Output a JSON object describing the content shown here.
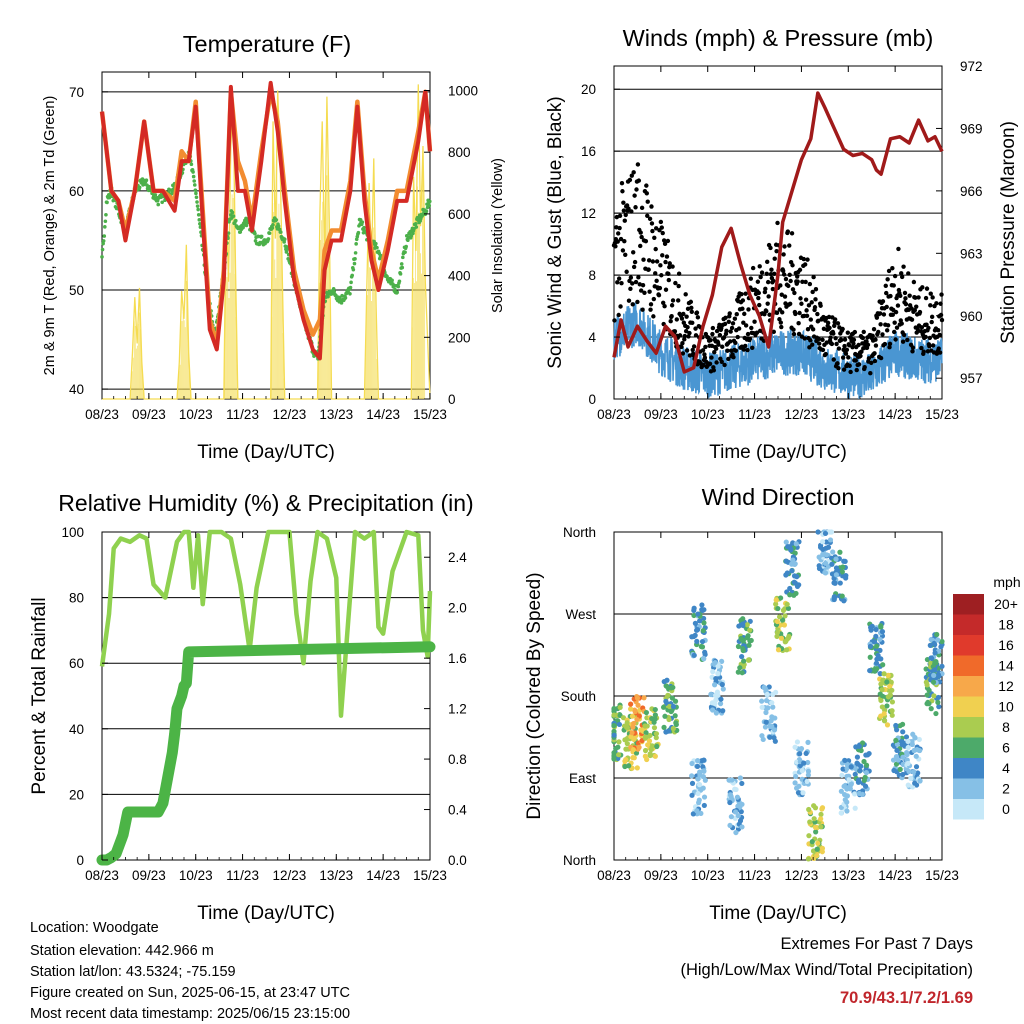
{
  "info": {
    "location": "Location: Woodgate",
    "elevation": "Station elevation: 442.966 m",
    "latlon": "Station lat/lon: 43.5324; -75.159",
    "created": "Figure created on Sun, 2025-06-15, at 23:47 UTC",
    "recent": "Most recent data timestamp: 2025/06/15 23:15:00"
  },
  "extremes": {
    "title": "Extremes For Past 7 Days",
    "subtitle": "(High/Low/Max Wind/Total Precipitation)",
    "values": "70.9/43.1/7.2/1.69"
  },
  "colors": {
    "red": "#d42a24",
    "orange": "#f28c30",
    "green": "#4cb04a",
    "yellow": "#f5dc52",
    "blue": "#4a96d2",
    "maroon": "#a01a1a",
    "lightgreen": "#8fd14f",
    "darkgreen": "#4cb446"
  },
  "chart_data": [
    {
      "id": "temp",
      "type": "line",
      "title": "Temperature (F)",
      "xlabel": "Time (Day/UTC)",
      "ylabel_left": "2m & 9m T (Red, Orange) & 2m Td (Green)",
      "ylabel_right": "Solar Insolation (Yellow)",
      "x_ticks": [
        "08/23",
        "09/23",
        "10/23",
        "11/23",
        "12/23",
        "13/23",
        "14/23",
        "15/23"
      ],
      "y_ticks": [
        "40",
        "50",
        "60",
        "70"
      ],
      "ylim": [
        39,
        72
      ],
      "y2_ticks": [
        "0",
        "200",
        "400",
        "600",
        "800",
        "1000"
      ],
      "y2lim": [
        0,
        1060
      ],
      "gridlines": [
        40,
        50,
        60,
        70
      ],
      "series": [
        {
          "role": "solar",
          "x": [
            0,
            0.1,
            0.15,
            0.2,
            0.25,
            0.3,
            0.6,
            0.65,
            0.7,
            0.75,
            0.8,
            0.85,
            0.9,
            1.6,
            1.65,
            1.7,
            1.75,
            1.8,
            1.85,
            1.9,
            2.6,
            2.65,
            2.7,
            2.75,
            2.8,
            2.85,
            2.9,
            3.6,
            3.65,
            3.7,
            3.75,
            3.8,
            3.85,
            3.9,
            4.6,
            4.65,
            4.7,
            4.75,
            4.8,
            4.85,
            4.9,
            5.6,
            5.65,
            5.7,
            5.75,
            5.8,
            5.85,
            5.9,
            6.6,
            6.65,
            6.7,
            6.75,
            6.8,
            6.85,
            6.9,
            7.0
          ],
          "y": [
            0,
            0,
            0,
            0,
            0,
            0,
            0,
            150,
            330,
            180,
            360,
            120,
            0,
            0,
            120,
            350,
            260,
            500,
            150,
            0,
            0,
            650,
            380,
            820,
            960,
            420,
            0,
            0,
            900,
            520,
            1000,
            780,
            380,
            0,
            0,
            600,
            900,
            450,
            980,
            580,
            0,
            0,
            350,
            700,
            420,
            780,
            300,
            0,
            0,
            720,
            480,
            1020,
            560,
            820,
            380,
            0
          ]
        },
        {
          "role": "t9m",
          "x": [
            0,
            0.2,
            0.35,
            0.5,
            0.7,
            0.9,
            1.1,
            1.3,
            1.55,
            1.7,
            1.85,
            2.0,
            2.15,
            2.3,
            2.45,
            2.6,
            2.75,
            2.9,
            3.05,
            3.2,
            3.4,
            3.6,
            3.75,
            3.9,
            4.1,
            4.3,
            4.5,
            4.65,
            4.75,
            4.9,
            5.1,
            5.3,
            5.45,
            5.6,
            5.75,
            5.9,
            6.1,
            6.3,
            6.5,
            6.75,
            6.9,
            7.0
          ],
          "y": [
            68,
            60,
            59,
            56,
            60,
            67,
            60,
            60,
            59,
            64,
            63,
            69,
            58,
            47,
            44.5,
            52,
            70,
            63,
            61,
            57,
            64,
            70,
            67,
            60,
            52,
            48,
            45.5,
            47,
            54,
            56,
            56,
            61,
            69,
            60,
            54,
            51,
            55,
            60,
            60,
            66,
            70,
            64
          ]
        },
        {
          "role": "t2m",
          "x": [
            0,
            0.2,
            0.35,
            0.5,
            0.7,
            0.9,
            1.1,
            1.3,
            1.55,
            1.7,
            1.85,
            2.0,
            2.15,
            2.3,
            2.45,
            2.6,
            2.75,
            2.9,
            3.05,
            3.2,
            3.4,
            3.6,
            3.75,
            3.9,
            4.1,
            4.3,
            4.5,
            4.65,
            4.75,
            4.9,
            5.1,
            5.3,
            5.45,
            5.6,
            5.75,
            5.9,
            6.1,
            6.3,
            6.5,
            6.75,
            6.9,
            7.0
          ],
          "y": [
            68,
            60,
            59,
            55,
            60,
            67,
            60,
            60,
            58,
            63,
            63,
            68.5,
            57,
            46,
            44,
            51,
            70.5,
            60,
            60,
            56,
            63,
            70.9,
            66,
            59,
            51,
            47,
            44,
            43.1,
            52,
            55,
            55,
            60,
            68.5,
            59,
            53,
            50,
            54,
            59,
            59,
            65,
            70,
            64
          ]
        },
        {
          "role": "td",
          "x": [
            0,
            0.1,
            0.2,
            0.5,
            0.7,
            0.9,
            1.2,
            1.5,
            1.7,
            1.85,
            2.0,
            2.2,
            2.4,
            2.55,
            2.75,
            2.9,
            3.1,
            3.3,
            3.5,
            3.7,
            3.9,
            4.1,
            4.3,
            4.5,
            4.6,
            4.75,
            4.9,
            5.1,
            5.3,
            5.5,
            5.7,
            5.9,
            6.1,
            6.3,
            6.5,
            6.75,
            6.9,
            7.0
          ],
          "y": [
            53,
            59,
            60,
            56,
            60,
            61,
            59,
            60,
            62,
            64,
            60,
            52,
            45,
            50,
            58,
            56,
            57,
            55,
            55,
            57,
            55,
            51,
            47,
            44,
            43,
            49,
            50,
            49,
            50,
            57,
            55,
            54,
            51,
            50,
            55,
            57,
            58,
            59
          ]
        }
      ]
    },
    {
      "id": "winds",
      "type": "scatter",
      "title": "Winds (mph) & Pressure (mb)",
      "xlabel": "Time (Day/UTC)",
      "ylabel_left": "Sonic Wind & Gust (Blue, Black)",
      "ylabel_right": "Station Pressure (Maroon)",
      "x_ticks": [
        "08/23",
        "09/23",
        "10/23",
        "11/23",
        "12/23",
        "13/23",
        "14/23",
        "15/23"
      ],
      "y_ticks": [
        "0",
        "4",
        "8",
        "12",
        "16",
        "20"
      ],
      "ylim": [
        0,
        21.5
      ],
      "y2_ticks": [
        "957",
        "960",
        "963",
        "966",
        "969",
        "972"
      ],
      "y2lim": [
        956,
        972
      ],
      "gridlines": [
        4,
        8,
        12,
        16,
        20
      ],
      "series": [
        {
          "role": "gust_level",
          "x": [
            0,
            0.5,
            1,
            1.5,
            2,
            2.5,
            3,
            3.5,
            4,
            4.5,
            5,
            5.5,
            6,
            6.5,
            7
          ],
          "y": [
            9,
            11,
            8,
            5,
            3,
            4,
            6,
            8,
            7,
            4,
            3,
            3,
            7,
            5,
            5
          ]
        },
        {
          "role": "sonic_level",
          "x": [
            0,
            0.5,
            1,
            1.5,
            2,
            2.5,
            3,
            3.5,
            4,
            4.5,
            5,
            5.5,
            6,
            6.5,
            7
          ],
          "y": [
            4,
            5,
            3,
            2,
            1.5,
            2,
            2.5,
            3,
            3,
            2,
            1.5,
            1.5,
            3,
            2.5,
            2.5
          ]
        },
        {
          "role": "pressure",
          "x": [
            0,
            0.15,
            0.3,
            0.5,
            0.7,
            0.9,
            1.1,
            1.3,
            1.5,
            1.7,
            1.9,
            2.1,
            2.3,
            2.5,
            2.7,
            2.9,
            3.1,
            3.3,
            3.5,
            3.6,
            3.8,
            4.0,
            4.2,
            4.35,
            4.5,
            4.7,
            4.9,
            5.1,
            5.3,
            5.5,
            5.6,
            5.7,
            5.9,
            6.1,
            6.3,
            6.5,
            6.7,
            6.85,
            7.0
          ],
          "y": [
            958,
            959.8,
            958.5,
            959.5,
            958.8,
            958.2,
            959.5,
            959,
            957.3,
            957.5,
            959.5,
            961,
            963.3,
            964.2,
            962.5,
            961,
            960,
            958.5,
            962,
            964.5,
            966,
            967.5,
            968.5,
            970.7,
            970,
            969,
            968,
            967.7,
            967.8,
            967.5,
            967,
            966.8,
            968.5,
            968.6,
            968.3,
            969.4,
            968.4,
            968.6,
            967.9
          ]
        }
      ]
    },
    {
      "id": "rh",
      "type": "line",
      "title": "Relative Humidity (%) & Precipitation (in)",
      "xlabel": "Time (Day/UTC)",
      "ylabel_left": "Percent & Total Rainfall",
      "x_ticks": [
        "08/23",
        "09/23",
        "10/23",
        "11/23",
        "12/23",
        "13/23",
        "14/23",
        "15/23"
      ],
      "y_ticks": [
        "0",
        "20",
        "40",
        "60",
        "80",
        "100"
      ],
      "ylim": [
        0,
        100
      ],
      "y2_ticks": [
        "0.0",
        "0.4",
        "0.8",
        "1.2",
        "1.6",
        "2.0",
        "2.4"
      ],
      "y2lim": [
        0,
        2.6
      ],
      "gridlines": [
        20,
        40,
        60,
        80,
        100
      ],
      "series": [
        {
          "role": "rh",
          "x": [
            0,
            0.15,
            0.25,
            0.4,
            0.6,
            0.8,
            0.95,
            1.1,
            1.35,
            1.6,
            1.75,
            1.85,
            1.95,
            2.05,
            2.15,
            2.3,
            2.55,
            2.75,
            2.95,
            3.15,
            3.3,
            3.55,
            3.8,
            4.0,
            4.15,
            4.3,
            4.45,
            4.6,
            4.8,
            5.0,
            5.1,
            5.25,
            5.4,
            5.6,
            5.8,
            5.9,
            6.0,
            6.2,
            6.5,
            6.75,
            6.85,
            6.95,
            7.0
          ],
          "y": [
            59,
            75,
            95,
            98,
            97,
            99,
            98,
            84,
            80,
            97,
            100,
            100,
            83,
            99,
            78,
            100,
            100,
            98,
            84,
            64,
            83,
            100,
            100,
            100,
            75,
            60,
            85,
            100,
            98,
            86,
            44,
            72,
            100,
            98,
            100,
            71,
            69,
            88,
            100,
            99,
            70,
            62,
            82
          ]
        },
        {
          "role": "precip",
          "x": [
            0,
            0.1,
            0.2,
            0.3,
            0.45,
            0.55,
            0.65,
            0.9,
            1.2,
            1.3,
            1.4,
            1.5,
            1.55,
            1.6,
            1.7,
            1.75,
            1.8,
            1.85,
            7.0
          ],
          "y": [
            0,
            0,
            0.02,
            0.05,
            0.2,
            0.38,
            0.38,
            0.38,
            0.38,
            0.45,
            0.65,
            0.85,
            1.0,
            1.2,
            1.3,
            1.38,
            1.4,
            1.65,
            1.69
          ]
        }
      ]
    },
    {
      "id": "wdir",
      "type": "scatter",
      "title": "Wind Direction",
      "xlabel": "Time (Day/UTC)",
      "ylabel_left": "Direction (Colored By Speed)",
      "x_ticks": [
        "08/23",
        "09/23",
        "10/23",
        "11/23",
        "12/23",
        "13/23",
        "14/23",
        "15/23"
      ],
      "y_ticks": [
        "North",
        "East",
        "South",
        "West",
        "North"
      ],
      "ylim": [
        0,
        360
      ],
      "gridlines": [
        90,
        180,
        270,
        360
      ],
      "legend": {
        "title": "mph",
        "labels": [
          "20+",
          "18",
          "16",
          "14",
          "12",
          "10",
          "8",
          "6",
          "4",
          "2",
          "0"
        ],
        "colors": [
          "#9e1f22",
          "#c42a2a",
          "#e03a2c",
          "#f06a2a",
          "#f7a84a",
          "#f0d050",
          "#aacc50",
          "#4daa6a",
          "#3f86c6",
          "#86c0e6",
          "#c6e8f8"
        ]
      },
      "clusters": [
        {
          "x": 0.0,
          "dir": 140,
          "speed": 3
        },
        {
          "x": 0.35,
          "dir": 130,
          "speed": 4
        },
        {
          "x": 0.5,
          "dir": 150,
          "speed": 6
        },
        {
          "x": 0.8,
          "dir": 140,
          "speed": 4
        },
        {
          "x": 1.2,
          "dir": 170,
          "speed": 3
        },
        {
          "x": 1.8,
          "dir": 250,
          "speed": 2
        },
        {
          "x": 1.8,
          "dir": 80,
          "speed": 1
        },
        {
          "x": 2.2,
          "dir": 190,
          "speed": 1
        },
        {
          "x": 2.6,
          "dir": 60,
          "speed": 1
        },
        {
          "x": 2.8,
          "dir": 235,
          "speed": 3
        },
        {
          "x": 3.3,
          "dir": 160,
          "speed": 1
        },
        {
          "x": 3.6,
          "dir": 260,
          "speed": 4
        },
        {
          "x": 3.8,
          "dir": 320,
          "speed": 2
        },
        {
          "x": 4.0,
          "dir": 100,
          "speed": 1
        },
        {
          "x": 4.3,
          "dir": 30,
          "speed": 4
        },
        {
          "x": 4.5,
          "dir": 345,
          "speed": 1
        },
        {
          "x": 4.8,
          "dir": 310,
          "speed": 2
        },
        {
          "x": 5.0,
          "dir": 80,
          "speed": 1
        },
        {
          "x": 5.3,
          "dir": 100,
          "speed": 2
        },
        {
          "x": 5.6,
          "dir": 230,
          "speed": 2
        },
        {
          "x": 5.8,
          "dir": 175,
          "speed": 4
        },
        {
          "x": 6.1,
          "dir": 120,
          "speed": 2
        },
        {
          "x": 6.4,
          "dir": 110,
          "speed": 1
        },
        {
          "x": 6.8,
          "dir": 190,
          "speed": 3
        },
        {
          "x": 6.9,
          "dir": 220,
          "speed": 2
        }
      ]
    }
  ]
}
